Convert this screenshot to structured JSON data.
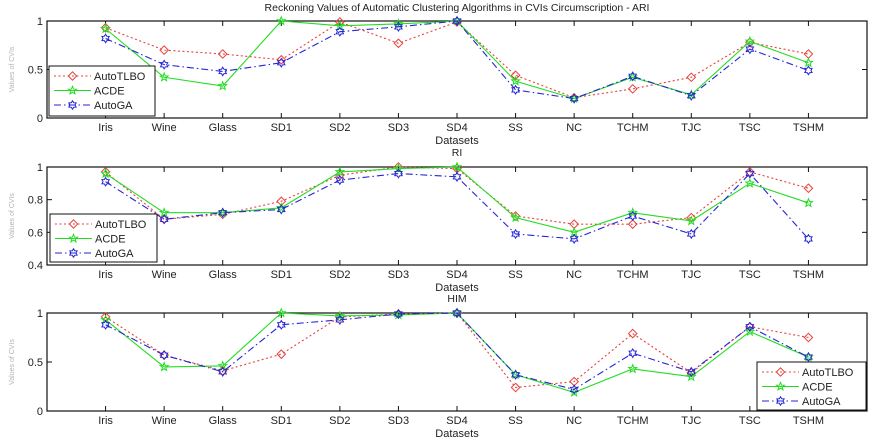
{
  "chart_data": [
    {
      "type": "line",
      "title": "Reckoning Values of Automatic Clustering Algorithms in CVIs Circumscription - ARI",
      "xlabel": "Datasets",
      "ylabel": "Values of CVIs",
      "categories": [
        "Iris",
        "Wine",
        "Glass",
        "SD1",
        "SD2",
        "SD3",
        "SD4",
        "SS",
        "NC",
        "TCHM",
        "TJC",
        "TSC",
        "TSHM"
      ],
      "xlim": [
        0,
        14
      ],
      "ylim": [
        0,
        1
      ],
      "yticks": [
        0,
        0.5,
        1
      ],
      "ytick_labels": [
        "0",
        "0.5",
        "1"
      ],
      "legend_position": "middle-left",
      "grid": false,
      "series": [
        {
          "name": "AutoTLBO",
          "values": [
            0.93,
            0.7,
            0.66,
            0.6,
            0.99,
            0.77,
            0.99,
            0.44,
            0.21,
            0.3,
            0.42,
            0.78,
            0.66
          ]
        },
        {
          "name": "ACDE",
          "values": [
            0.92,
            0.42,
            0.33,
            1.0,
            0.95,
            0.97,
            1.0,
            0.38,
            0.2,
            0.42,
            0.24,
            0.79,
            0.57
          ]
        },
        {
          "name": "AutoGA",
          "values": [
            0.82,
            0.55,
            0.48,
            0.57,
            0.89,
            0.94,
            1.0,
            0.29,
            0.2,
            0.43,
            0.23,
            0.71,
            0.49
          ]
        }
      ]
    },
    {
      "type": "line",
      "title": "RI",
      "xlabel": "Datasets",
      "ylabel": "Values of CVIs",
      "categories": [
        "Iris",
        "Wine",
        "Glass",
        "SD1",
        "SD2",
        "SD3",
        "SD4",
        "SS",
        "NC",
        "TCHM",
        "TJC",
        "TSC",
        "TSHM"
      ],
      "xlim": [
        0,
        14
      ],
      "ylim": [
        0.4,
        1
      ],
      "yticks": [
        0.4,
        0.6,
        0.8,
        1
      ],
      "ytick_labels": [
        "0.4",
        "0.6",
        "0.8",
        "1"
      ],
      "legend_position": "bottom-left",
      "grid": false,
      "series": [
        {
          "name": "AutoTLBO",
          "values": [
            0.97,
            0.68,
            0.71,
            0.79,
            0.95,
            1.0,
            0.99,
            0.7,
            0.65,
            0.65,
            0.69,
            0.97,
            0.87
          ]
        },
        {
          "name": "ACDE",
          "values": [
            0.96,
            0.72,
            0.72,
            0.75,
            0.97,
            0.99,
            1.0,
            0.69,
            0.6,
            0.72,
            0.67,
            0.9,
            0.78
          ]
        },
        {
          "name": "AutoGA",
          "values": [
            0.91,
            0.68,
            0.72,
            0.74,
            0.92,
            0.96,
            0.94,
            0.59,
            0.56,
            0.7,
            0.59,
            0.96,
            0.56
          ]
        }
      ]
    },
    {
      "type": "line",
      "title": "HIM",
      "xlabel": "Datasets",
      "ylabel": "Values of CVIs",
      "categories": [
        "Iris",
        "Wine",
        "Glass",
        "SD1",
        "SD2",
        "SD3",
        "SD4",
        "SS",
        "NC",
        "TCHM",
        "TJC",
        "TSC",
        "TSHM"
      ],
      "xlim": [
        0,
        14
      ],
      "ylim": [
        0,
        1
      ],
      "yticks": [
        0,
        0.5,
        1
      ],
      "ytick_labels": [
        "0",
        "0.5",
        "1"
      ],
      "legend_position": "bottom-right",
      "grid": false,
      "series": [
        {
          "name": "AutoTLBO",
          "values": [
            0.96,
            0.57,
            0.41,
            0.58,
            0.96,
            0.99,
            1.0,
            0.24,
            0.3,
            0.79,
            0.39,
            0.86,
            0.75
          ]
        },
        {
          "name": "ACDE",
          "values": [
            0.93,
            0.45,
            0.46,
            1.0,
            0.97,
            0.98,
            1.0,
            0.37,
            0.19,
            0.43,
            0.35,
            0.81,
            0.55
          ]
        },
        {
          "name": "AutoGA",
          "values": [
            0.88,
            0.57,
            0.4,
            0.88,
            0.93,
            0.99,
            1.0,
            0.37,
            0.22,
            0.59,
            0.4,
            0.86,
            0.55
          ]
        }
      ]
    }
  ],
  "series_styles": {
    "AutoTLBO": {
      "color": "#e8403a",
      "marker": "diamond",
      "dash": "dotted"
    },
    "ACDE": {
      "color": "#22dd22",
      "marker": "star",
      "dash": "solid"
    },
    "AutoGA": {
      "color": "#2424d8",
      "marker": "hexagram",
      "dash": "dashdot"
    }
  }
}
